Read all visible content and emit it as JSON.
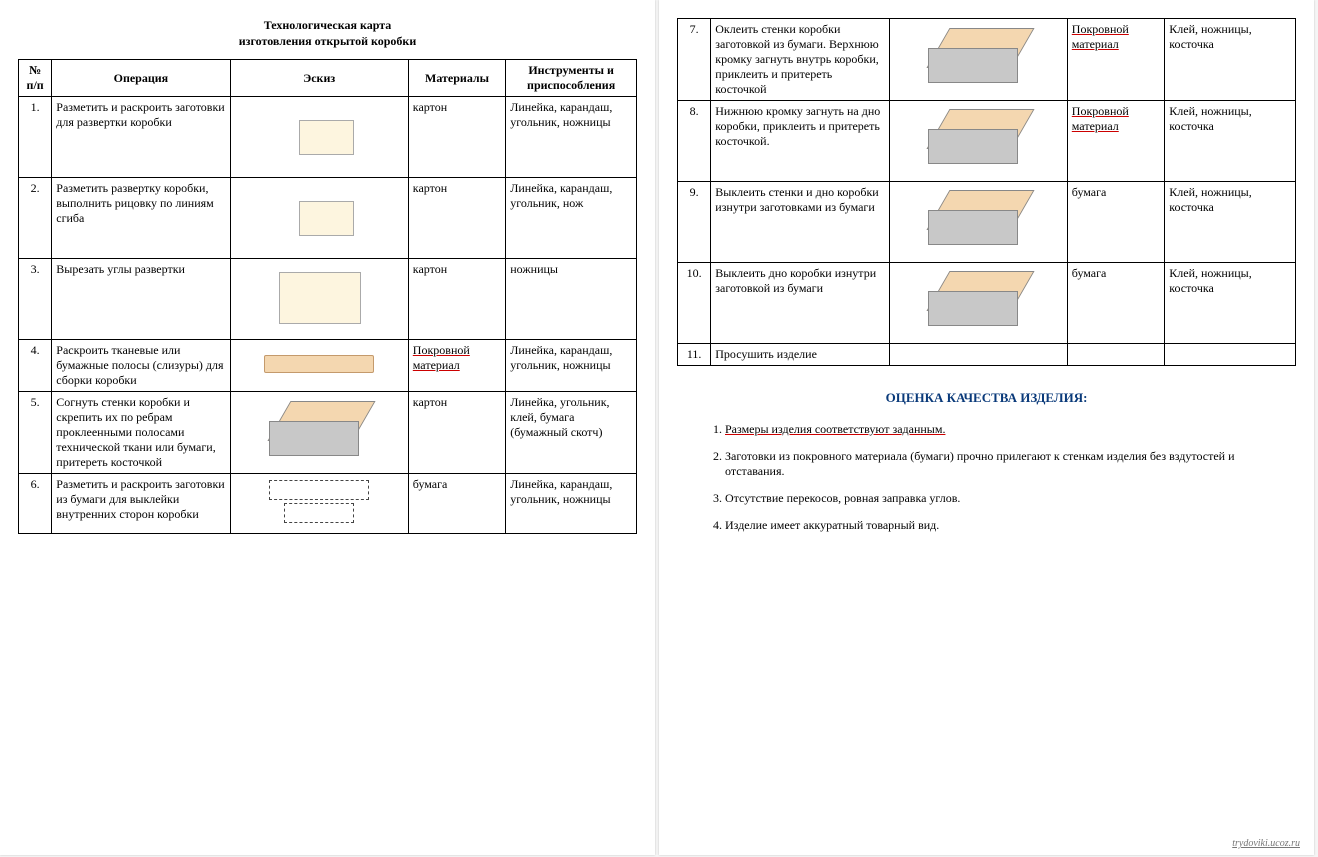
{
  "title_line1": "Технологическая карта",
  "title_line2": "изготовления открытой коробки",
  "headers": {
    "num": "№ п/п",
    "operation": "Операция",
    "sketch": "Эскиз",
    "materials": "Материалы",
    "tools": "Инструменты и приспособления"
  },
  "rows": [
    {
      "n": "1.",
      "op": "Разметить и раскроить заготовки для развертки коробки",
      "mat": "картон",
      "tool": "Линейка, карандаш, угольник, ножницы",
      "sk": "labels"
    },
    {
      "n": "2.",
      "op": "Разметить развертку коробки, выполнить рицовку по линиям сгиба",
      "mat": "картон",
      "tool": "Линейка, карандаш, угольник, нож",
      "sk": "labels"
    },
    {
      "n": "3.",
      "op": "Вырезать углы развертки",
      "mat": "картон",
      "tool": "ножницы",
      "sk": "unfold"
    },
    {
      "n": "4.",
      "op": "Раскроить тканевые или бумажные полосы (слизуры) для сборки коробки",
      "mat": "Покровной материал",
      "tool": "Линейка, карандаш, угольник, ножницы",
      "sk": "strip",
      "mat_u": true
    },
    {
      "n": "5.",
      "op": "Согнуть стенки коробки и скрепить их по ребрам проклеенными полосами технической ткани или бумаги, притереть косточкой",
      "mat": "картон",
      "tool": "Линейка, угольник, клей, бумага (бумажный скотч)",
      "sk": "box3d"
    },
    {
      "n": "6.",
      "op": "Разметить и раскроить заготовки из бумаги для выклейки внутренних сторон коробки",
      "mat": "бумага",
      "tool": "Линейка, карандаш, угольник, ножницы",
      "sk": "dashed2"
    }
  ],
  "rows2": [
    {
      "n": "7.",
      "op": "Оклеить стенки коробки заготовкой из бумаги. Верхнюю кромку загнуть внутрь коробки, приклеить и притереть косточкой",
      "mat": "Покровной материал",
      "tool": "Клей, ножницы, косточка",
      "sk": "box3d",
      "mat_u": true
    },
    {
      "n": "8.",
      "op": "Нижнюю кромку загнуть на дно коробки, приклеить и притереть косточкой.",
      "mat": "Покровной материал",
      "tool": "Клей, ножницы, косточка",
      "sk": "box3d",
      "mat_u": true
    },
    {
      "n": "9.",
      "op": "Выклеить стенки и дно коробки изнутри заготовками из бумаги",
      "mat": "бумага",
      "tool": "Клей, ножницы, косточка",
      "sk": "box3d"
    },
    {
      "n": "10.",
      "op": "Выклеить дно коробки изнутри заготовкой из бумаги",
      "mat": "бумага",
      "tool": "Клей, ножницы, косточка",
      "sk": "box3d"
    },
    {
      "n": "11.",
      "op": "Просушить изделие",
      "mat": "",
      "tool": "",
      "sk": "none"
    }
  ],
  "quality_title": "ОЦЕНКА КАЧЕСТВА ИЗДЕЛИЯ:",
  "quality_items": [
    "Размеры изделия соответствуют заданным.",
    "Заготовки из покровного материала (бумаги) прочно прилегают к стенкам изделия без вздутостей и отставания.",
    "Отсутствие перекосов, ровная заправка углов.",
    "Изделие имеет аккуратный товарный вид."
  ],
  "watermark": "trydoviki.ucoz.ru"
}
